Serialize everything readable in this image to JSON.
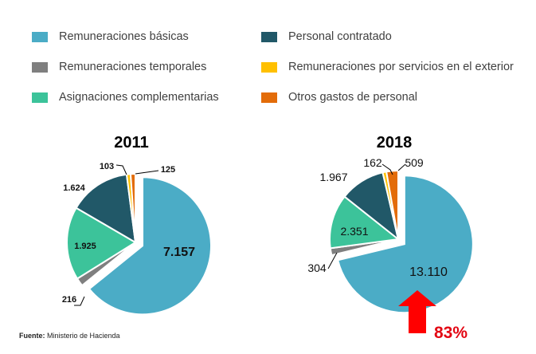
{
  "legend": [
    {
      "label": "Remuneraciones básicas",
      "color": "#4bacc6"
    },
    {
      "label": "Remuneraciones temporales",
      "color": "#7f7f7f"
    },
    {
      "label": "Asignaciones complementarias",
      "color": "#3cc39a"
    },
    {
      "label": "Personal contratado",
      "color": "#215868"
    },
    {
      "label": "Remuneraciones por servicios en el exterior",
      "color": "#ffc000"
    },
    {
      "label": "Otros gastos de personal",
      "color": "#e36c09"
    }
  ],
  "chart_data": [
    {
      "type": "pie",
      "title": "2011",
      "slices": [
        {
          "name": "Remuneraciones básicas",
          "value": 7157,
          "label": "7.157",
          "color": "#4bacc6"
        },
        {
          "name": "Remuneraciones temporales",
          "value": 216,
          "label": "216",
          "color": "#7f7f7f"
        },
        {
          "name": "Asignaciones complementarias",
          "value": 1925,
          "label": "1.925",
          "color": "#3cc39a"
        },
        {
          "name": "Personal contratado",
          "value": 1624,
          "label": "1.624",
          "color": "#215868"
        },
        {
          "name": "Remuneraciones por servicios en el exterior",
          "value": 103,
          "label": "103",
          "color": "#ffc000"
        },
        {
          "name": "Otros gastos de personal",
          "value": 125,
          "label": "125",
          "color": "#e36c09"
        }
      ]
    },
    {
      "type": "pie",
      "title": "2018",
      "slices": [
        {
          "name": "Remuneraciones básicas",
          "value": 13110,
          "label": "13.110",
          "color": "#4bacc6"
        },
        {
          "name": "Remuneraciones temporales",
          "value": 304,
          "label": "304",
          "color": "#7f7f7f"
        },
        {
          "name": "Asignaciones complementarias",
          "value": 2351,
          "label": "2.351",
          "color": "#3cc39a"
        },
        {
          "name": "Personal contratado",
          "value": 1967,
          "label": "1.967",
          "color": "#215868"
        },
        {
          "name": "Remuneraciones por servicios en el exterior",
          "value": 162,
          "label": "162",
          "color": "#ffc000"
        },
        {
          "name": "Otros gastos de personal",
          "value": 509,
          "label": "509",
          "color": "#e36c09"
        }
      ]
    }
  ],
  "source": {
    "prefix": "Fuente:",
    "text": "Ministerio de Hacienda"
  },
  "annotation": {
    "growth": "83%",
    "arrow_color": "#ff0000"
  }
}
